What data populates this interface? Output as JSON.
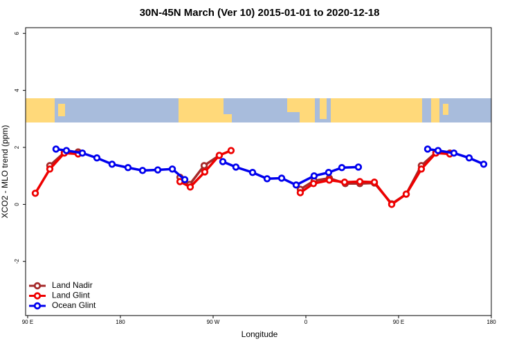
{
  "chart_data": {
    "type": "line",
    "title": "30N-45N March (Ver 10)   2015-01-01 to 2020-12-18",
    "x_label": "Longitude",
    "y_label": "XCO2 - MLO trend (ppm)",
    "xlim": [
      88,
      540
    ],
    "ylim": [
      -3.9,
      6.2
    ],
    "xticks": [
      {
        "value": 90,
        "label": "90 E"
      },
      180,
      {
        "value": 270,
        "label": "90 W"
      },
      {
        "value": 360,
        "label": "0"
      },
      {
        "value": 450,
        "label": "90 E"
      },
      180
    ],
    "yticks": [
      -2,
      0,
      2,
      4,
      6
    ],
    "legend": "bottomleft",
    "series": [
      {
        "name": "Land Nadir",
        "color": "#a52a2a",
        "x": [
          111.5,
          125.6,
          139.0,
          null,
          237.8,
          247.2,
          261.3,
          276.0,
          null,
          354.6,
          368.0,
          382.8,
          398.3,
          412.4,
          426.5,
          443.3,
          457.4,
          472.1,
          486.2,
          499.7
        ],
        "values": [
          1.36,
          1.82,
          1.84,
          null,
          0.95,
          0.7,
          1.36,
          1.72,
          null,
          0.53,
          0.83,
          0.92,
          0.73,
          0.73,
          0.75,
          0.02,
          0.36,
          1.36,
          1.82,
          1.8
        ]
      },
      {
        "name": "Land Glint",
        "color": "#ee0000",
        "x": [
          97.4,
          111.5,
          125.6,
          139.0,
          null,
          237.8,
          247.8,
          261.9,
          276.0,
          287.4,
          null,
          354.6,
          367.4,
          382.8,
          397.6,
          412.4,
          426.5,
          443.3,
          457.4,
          472.1,
          486.2,
          499.7
        ],
        "values": [
          0.39,
          1.24,
          1.8,
          1.77,
          null,
          0.8,
          0.61,
          1.14,
          1.72,
          1.89,
          null,
          0.41,
          0.73,
          0.85,
          0.78,
          0.8,
          0.78,
          0.0,
          0.36,
          1.24,
          1.8,
          1.77
        ]
      },
      {
        "name": "Ocean Glint",
        "color": "#0000ee",
        "x": [
          117.5,
          127.6,
          143.1,
          157.2,
          171.9,
          187.4,
          201.5,
          216.3,
          230.4,
          242.5,
          null,
          279.4,
          292.1,
          308.3,
          322.4,
          336.5,
          350.6,
          368.0,
          382.1,
          394.9,
          411.0,
          null,
          478.2,
          488.3,
          503.7,
          518.5,
          532.6
        ],
        "values": [
          1.94,
          1.89,
          1.8,
          1.63,
          1.41,
          1.29,
          1.19,
          1.21,
          1.24,
          0.87,
          null,
          1.5,
          1.31,
          1.12,
          0.9,
          0.92,
          0.68,
          1.0,
          1.12,
          1.29,
          1.31,
          null,
          1.94,
          1.89,
          1.8,
          1.63,
          1.41
        ]
      }
    ]
  }
}
